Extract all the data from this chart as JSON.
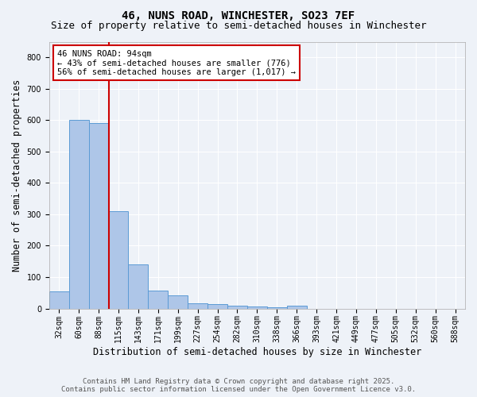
{
  "title_line1": "46, NUNS ROAD, WINCHESTER, SO23 7EF",
  "title_line2": "Size of property relative to semi-detached houses in Winchester",
  "xlabel": "Distribution of semi-detached houses by size in Winchester",
  "ylabel": "Number of semi-detached properties",
  "categories": [
    "32sqm",
    "60sqm",
    "88sqm",
    "115sqm",
    "143sqm",
    "171sqm",
    "199sqm",
    "227sqm",
    "254sqm",
    "282sqm",
    "310sqm",
    "338sqm",
    "366sqm",
    "393sqm",
    "421sqm",
    "449sqm",
    "477sqm",
    "505sqm",
    "532sqm",
    "560sqm",
    "588sqm"
  ],
  "values": [
    55,
    600,
    590,
    310,
    140,
    57,
    43,
    17,
    15,
    10,
    7,
    5,
    10,
    0,
    0,
    0,
    0,
    0,
    0,
    0,
    0
  ],
  "bar_color": "#aec6e8",
  "bar_edge_color": "#5b9bd5",
  "redline_x": 2.5,
  "redline_color": "#cc0000",
  "annotation_title": "46 NUNS ROAD: 94sqm",
  "annotation_line2": "← 43% of semi-detached houses are smaller (776)",
  "annotation_line3": "56% of semi-detached houses are larger (1,017) →",
  "annotation_box_color": "#cc0000",
  "annotation_bg": "#ffffff",
  "ylim": [
    0,
    850
  ],
  "yticks": [
    0,
    100,
    200,
    300,
    400,
    500,
    600,
    700,
    800
  ],
  "footer_line1": "Contains HM Land Registry data © Crown copyright and database right 2025.",
  "footer_line2": "Contains public sector information licensed under the Open Government Licence v3.0.",
  "bg_color": "#eef2f8",
  "grid_color": "#ffffff",
  "title_fontsize": 10,
  "subtitle_fontsize": 9,
  "axis_label_fontsize": 8.5,
  "tick_fontsize": 7,
  "footer_fontsize": 6.5,
  "ann_fontsize": 7.5
}
